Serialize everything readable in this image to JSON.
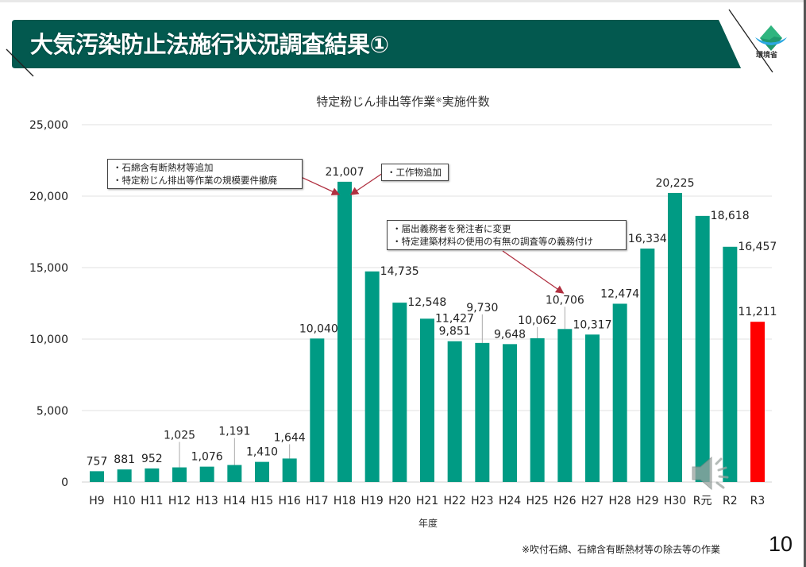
{
  "slide": {
    "title": "大気汚染防止法施行状況調査結果①",
    "logo_text": "環境省",
    "logo_icon": "ministry-of-environment-logo",
    "page_number": "10",
    "footnote": "※吹付石綿、石綿含有断熱材等の除去等の作業",
    "colors": {
      "banner": "#03594F",
      "bar": "#009B84",
      "highlight_bar": "#FF0000",
      "arrow": "#B03040"
    },
    "audio_icon": "speaker-icon"
  },
  "callouts": [
    {
      "lines": [
        "・石綿含有断熱材等追加",
        "・特定粉じん排出等作業の規模要件撤廃"
      ],
      "points_to": "H18"
    },
    {
      "lines": [
        "・工作物追加"
      ],
      "points_to": "H18"
    },
    {
      "lines": [
        "・届出義務者を発注者に変更",
        "・特定建築材料の使用の有無の調査等の義務付け"
      ],
      "points_to": "H26"
    }
  ],
  "chart_data": {
    "type": "bar",
    "title": "特定粉じん排出等作業",
    "title_mark": "※",
    "title_suffix": "実施件数",
    "xlabel": "年度",
    "ylabel": "",
    "ylim": [
      0,
      25000
    ],
    "yticks": [
      0,
      5000,
      10000,
      15000,
      20000,
      25000
    ],
    "ytick_labels": [
      "0",
      "5,000",
      "10,000",
      "15,000",
      "20,000",
      "25,000"
    ],
    "grid": true,
    "legend": "none",
    "categories": [
      "H9",
      "H10",
      "H11",
      "H12",
      "H13",
      "H14",
      "H15",
      "H16",
      "H17",
      "H18",
      "H19",
      "H20",
      "H21",
      "H22",
      "H23",
      "H24",
      "H25",
      "H26",
      "H27",
      "H28",
      "H29",
      "H30",
      "R元",
      "R2",
      "R3"
    ],
    "values": [
      757,
      881,
      952,
      1025,
      1076,
      1191,
      1410,
      1644,
      10040,
      21007,
      14735,
      12548,
      11427,
      9851,
      9730,
      9648,
      10062,
      10706,
      10317,
      12474,
      16334,
      20225,
      18618,
      16457,
      11211
    ],
    "value_labels": [
      "757",
      "881",
      "952",
      "1,025",
      "1,076",
      "1,191",
      "1,410",
      "1,644",
      "10,040",
      "21,007",
      "14,735",
      "12,548",
      "11,427",
      "9,851",
      "9,730",
      "9,648",
      "10,062",
      "10,706",
      "10,317",
      "12,474",
      "16,334",
      "20,225",
      "18,618",
      "16,457",
      "11,211"
    ],
    "highlight_category": "R3"
  }
}
